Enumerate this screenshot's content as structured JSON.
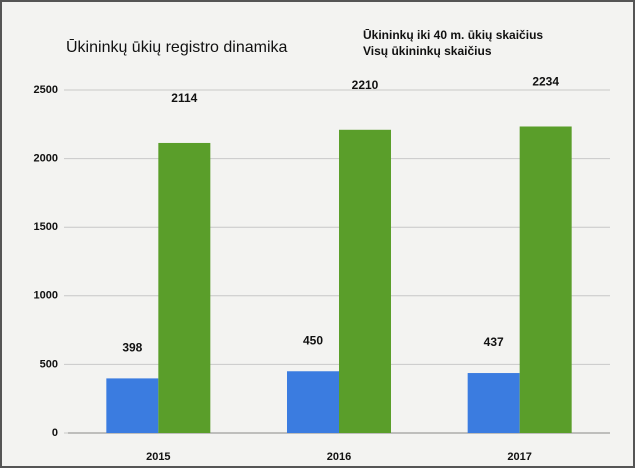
{
  "chart_data": {
    "type": "bar",
    "title": "Ūkininkų ūkių registro dinamika",
    "categories": [
      "2015",
      "2016",
      "2017"
    ],
    "series": [
      {
        "name": "Ūkininkų iki 40 m. ūkių skaičius",
        "color": "#3b7ce0",
        "values": [
          398,
          450,
          437
        ]
      },
      {
        "name": "Visų ūkininkų skaičius",
        "color": "#5a9e2a",
        "values": [
          2114,
          2210,
          2234
        ]
      }
    ],
    "ylim": [
      0,
      2500
    ],
    "yticks": [
      0,
      500,
      1000,
      1500,
      2000,
      2500
    ],
    "grid": true
  }
}
